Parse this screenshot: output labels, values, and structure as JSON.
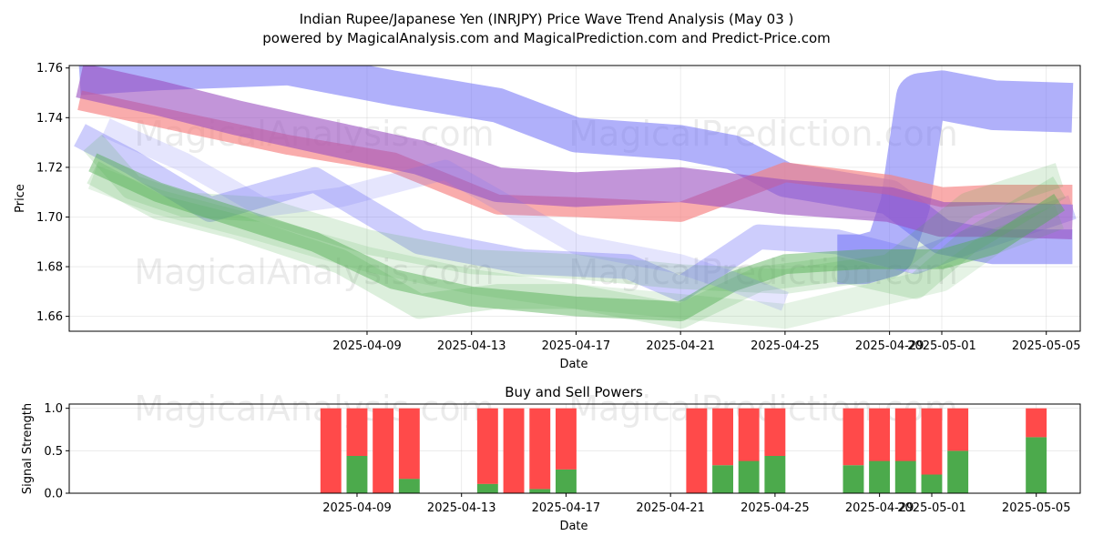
{
  "title_line1": "Indian Rupee/Japanese Yen (INRJPY) Price Wave Trend Analysis (May 03 )",
  "title_line2": "powered by MagicalAnalysis.com and MagicalPrediction.com and Predict-Price.com",
  "watermarks": [
    "MagicalAnalysis.com",
    "MagicalPrediction.com"
  ],
  "colors": {
    "blue": "#6f6ff6",
    "red": "#f67f7f",
    "purple": "#9a4fc0",
    "green": "#4fae4f",
    "buy": "#4caa4c",
    "sell": "#ff4a4a"
  },
  "chart_data": [
    {
      "type": "line",
      "title": "",
      "xlabel": "Date",
      "ylabel": "Price",
      "x_ticks": [
        "2025-04-09",
        "2025-04-13",
        "2025-04-17",
        "2025-04-21",
        "2025-04-25",
        "2025-04-29",
        "2025-05-01",
        "2025-05-05"
      ],
      "x_tick_days": [
        8,
        12,
        16,
        20,
        24,
        28,
        30,
        34
      ],
      "xlim_days": [
        -3.4,
        35.3
      ],
      "y_ticks": [
        "1.66",
        "1.68",
        "1.70",
        "1.72",
        "1.74",
        "1.76"
      ],
      "y_tick_values": [
        1.66,
        1.68,
        1.7,
        1.72,
        1.74,
        1.76
      ],
      "ylim": [
        1.654,
        1.761
      ],
      "grid": true,
      "x_day0": "2025-04-01",
      "series": [
        {
          "name": "blue wave upper",
          "color": "blue",
          "opacity": 0.55,
          "band": 0.014,
          "x": [
            -3,
            0,
            5,
            9,
            13,
            16,
            20,
            22,
            24,
            28,
            30,
            32,
            35
          ],
          "y": [
            1.756,
            1.758,
            1.76,
            1.752,
            1.745,
            1.733,
            1.73,
            1.726,
            1.715,
            1.708,
            1.692,
            1.688,
            1.688
          ]
        },
        {
          "name": "blue wave step",
          "color": "blue",
          "opacity": 0.55,
          "band": 0.02,
          "x": [
            26,
            27,
            28,
            28.6,
            29.2,
            30,
            32,
            35
          ],
          "y": [
            1.683,
            1.683,
            1.686,
            1.705,
            1.748,
            1.749,
            1.745,
            1.744
          ]
        },
        {
          "name": "blue wave lower",
          "color": "blue",
          "opacity": 0.35,
          "band": 0.01,
          "x": [
            -3,
            -1,
            2,
            6,
            10,
            14,
            18,
            20,
            23,
            26,
            29,
            31,
            35
          ],
          "y": [
            1.733,
            1.722,
            1.703,
            1.715,
            1.69,
            1.682,
            1.68,
            1.671,
            1.692,
            1.69,
            1.682,
            1.69,
            1.704
          ]
        },
        {
          "name": "red wave",
          "color": "red",
          "opacity": 0.65,
          "band": 0.008,
          "x": [
            -3,
            1,
            5,
            9,
            13,
            16,
            20,
            24,
            28,
            30,
            32,
            35
          ],
          "y": [
            1.747,
            1.738,
            1.729,
            1.722,
            1.705,
            1.704,
            1.702,
            1.718,
            1.713,
            1.708,
            1.709,
            1.709
          ]
        },
        {
          "name": "purple wave",
          "color": "purple",
          "opacity": 0.6,
          "band": 0.014,
          "x": [
            -3,
            0,
            3,
            6,
            10,
            13,
            16,
            20,
            24,
            28,
            30,
            32,
            35
          ],
          "y": [
            1.755,
            1.748,
            1.74,
            1.733,
            1.724,
            1.713,
            1.711,
            1.713,
            1.708,
            1.705,
            1.699,
            1.699,
            1.698
          ]
        },
        {
          "name": "green wave main",
          "color": "green",
          "opacity": 0.45,
          "band": 0.008,
          "x": [
            -2.5,
            0,
            3,
            6,
            9,
            12,
            16,
            20,
            22,
            24,
            27,
            30,
            32,
            34.5
          ],
          "y": [
            1.722,
            1.71,
            1.7,
            1.69,
            1.675,
            1.668,
            1.664,
            1.662,
            1.674,
            1.681,
            1.683,
            1.683,
            1.689,
            1.706
          ]
        },
        {
          "name": "green wave alt 1",
          "color": "green",
          "opacity": 0.2,
          "band": 0.01,
          "x": [
            -2.5,
            0,
            3,
            7,
            10,
            13,
            16,
            20,
            23,
            26,
            29,
            31,
            34.5
          ],
          "y": [
            1.718,
            1.704,
            1.696,
            1.682,
            1.664,
            1.668,
            1.668,
            1.66,
            1.675,
            1.679,
            1.672,
            1.69,
            1.712
          ]
        },
        {
          "name": "green wave alt 2",
          "color": "green",
          "opacity": 0.18,
          "band": 0.01,
          "x": [
            -2.5,
            -1,
            1,
            4,
            8,
            12,
            16,
            20,
            24,
            28,
            31,
            34.5
          ],
          "y": [
            1.73,
            1.712,
            1.705,
            1.703,
            1.69,
            1.682,
            1.68,
            1.676,
            1.674,
            1.68,
            1.705,
            1.717
          ]
        },
        {
          "name": "green wave alt 3",
          "color": "green",
          "opacity": 0.15,
          "band": 0.01,
          "x": [
            -2.5,
            0,
            4,
            8,
            12,
            16,
            20,
            24,
            28,
            30,
            32,
            34.5
          ],
          "y": [
            1.716,
            1.706,
            1.695,
            1.683,
            1.674,
            1.668,
            1.664,
            1.66,
            1.67,
            1.675,
            1.69,
            1.7
          ]
        },
        {
          "name": "grey-blue wave",
          "color": "blue",
          "opacity": 0.18,
          "band": 0.008,
          "x": [
            -2,
            1,
            4,
            7,
            11,
            16,
            20,
            22,
            24
          ],
          "y": [
            1.736,
            1.722,
            1.704,
            1.708,
            1.719,
            1.689,
            1.681,
            1.674,
            1.666
          ]
        }
      ]
    },
    {
      "type": "bar",
      "title": "Buy and Sell Powers",
      "xlabel": "Date",
      "ylabel": "Signal Strength",
      "x_ticks": [
        "2025-04-09",
        "2025-04-13",
        "2025-04-17",
        "2025-04-21",
        "2025-04-25",
        "2025-04-29",
        "2025-05-01",
        "2025-05-05"
      ],
      "x_tick_days": [
        8,
        12,
        16,
        20,
        24,
        28,
        30,
        34
      ],
      "xlim_days": [
        -3.4,
        35.3
      ],
      "y_ticks": [
        "0.0",
        "0.5",
        "1.0"
      ],
      "y_tick_values": [
        0,
        0.5,
        1.0
      ],
      "ylim": [
        0,
        1.05
      ],
      "grid": true,
      "bars": [
        {
          "day": 7,
          "buy": 0.0,
          "sell": 1.0
        },
        {
          "day": 8,
          "buy": 0.44,
          "sell": 0.56
        },
        {
          "day": 9,
          "buy": 0.0,
          "sell": 1.0
        },
        {
          "day": 10,
          "buy": 0.17,
          "sell": 0.83
        },
        {
          "day": 13,
          "buy": 0.11,
          "sell": 0.89
        },
        {
          "day": 14,
          "buy": 0.0,
          "sell": 1.0
        },
        {
          "day": 15,
          "buy": 0.05,
          "sell": 0.95
        },
        {
          "day": 16,
          "buy": 0.28,
          "sell": 0.72
        },
        {
          "day": 21,
          "buy": 0.0,
          "sell": 1.0
        },
        {
          "day": 22,
          "buy": 0.33,
          "sell": 0.67
        },
        {
          "day": 23,
          "buy": 0.38,
          "sell": 0.62
        },
        {
          "day": 24,
          "buy": 0.44,
          "sell": 0.56
        },
        {
          "day": 27,
          "buy": 0.33,
          "sell": 0.67
        },
        {
          "day": 28,
          "buy": 0.38,
          "sell": 0.62
        },
        {
          "day": 29,
          "buy": 0.38,
          "sell": 0.62
        },
        {
          "day": 30,
          "buy": 0.22,
          "sell": 0.78
        },
        {
          "day": 31,
          "buy": 0.5,
          "sell": 0.5
        },
        {
          "day": 34,
          "buy": 0.66,
          "sell": 0.34
        }
      ]
    }
  ]
}
